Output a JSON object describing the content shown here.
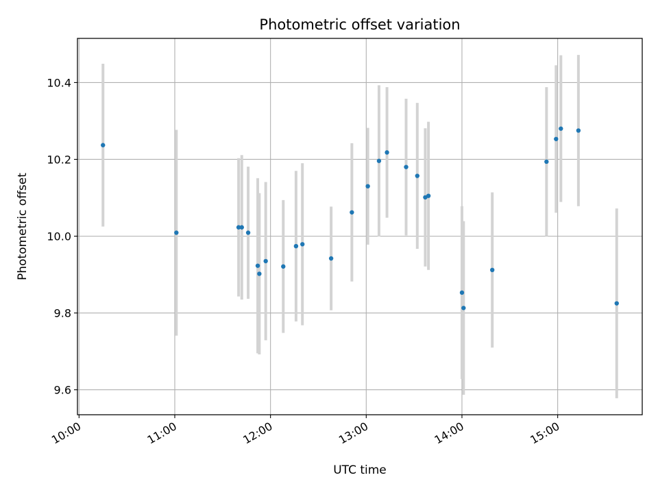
{
  "chart_data": {
    "type": "scatter",
    "title": "Photometric offset variation",
    "xlabel": "UTC time",
    "ylabel": "Photometric offset",
    "x_tick_labels": [
      "10:00",
      "11:00",
      "12:00",
      "13:00",
      "14:00",
      "15:00"
    ],
    "y_tick_labels": [
      "9.6",
      "9.8",
      "10.0",
      "10.2",
      "10.4"
    ],
    "xlim": [
      "09:59",
      "15:53"
    ],
    "ylim": [
      9.535,
      10.515
    ],
    "grid": true,
    "marker_color": "#1f77b4",
    "errorbar_color": "#d3d3d3",
    "points": [
      {
        "t": "10:15",
        "y": 10.237,
        "yerr": 0.212
      },
      {
        "t": "11:01",
        "y": 10.009,
        "yerr": 0.268
      },
      {
        "t": "11:40",
        "y": 10.023,
        "yerr": 0.18
      },
      {
        "t": "11:42",
        "y": 10.023,
        "yerr": 0.188
      },
      {
        "t": "11:46",
        "y": 10.009,
        "yerr": 0.172
      },
      {
        "t": "11:52",
        "y": 9.923,
        "yerr": 0.228
      },
      {
        "t": "11:53",
        "y": 9.902,
        "yerr": 0.21
      },
      {
        "t": "11:57",
        "y": 9.935,
        "yerr": 0.206
      },
      {
        "t": "12:08",
        "y": 9.921,
        "yerr": 0.173
      },
      {
        "t": "12:16",
        "y": 9.974,
        "yerr": 0.196
      },
      {
        "t": "12:20",
        "y": 9.979,
        "yerr": 0.211
      },
      {
        "t": "12:38",
        "y": 9.942,
        "yerr": 0.135
      },
      {
        "t": "12:51",
        "y": 10.062,
        "yerr": 0.18
      },
      {
        "t": "13:01",
        "y": 10.13,
        "yerr": 0.152
      },
      {
        "t": "13:08",
        "y": 10.196,
        "yerr": 0.197
      },
      {
        "t": "13:13",
        "y": 10.218,
        "yerr": 0.17
      },
      {
        "t": "13:25",
        "y": 10.18,
        "yerr": 0.178
      },
      {
        "t": "13:32",
        "y": 10.157,
        "yerr": 0.19
      },
      {
        "t": "13:37",
        "y": 10.101,
        "yerr": 0.18
      },
      {
        "t": "13:39",
        "y": 10.105,
        "yerr": 0.193
      },
      {
        "t": "14:00",
        "y": 9.853,
        "yerr": 0.225
      },
      {
        "t": "14:01",
        "y": 9.813,
        "yerr": 0.226
      },
      {
        "t": "14:19",
        "y": 9.912,
        "yerr": 0.202
      },
      {
        "t": "14:53",
        "y": 10.194,
        "yerr": 0.194
      },
      {
        "t": "14:59",
        "y": 10.253,
        "yerr": 0.192
      },
      {
        "t": "15:02",
        "y": 10.28,
        "yerr": 0.191
      },
      {
        "t": "15:13",
        "y": 10.275,
        "yerr": 0.197
      },
      {
        "t": "15:37",
        "y": 9.825,
        "yerr": 0.247
      }
    ]
  }
}
